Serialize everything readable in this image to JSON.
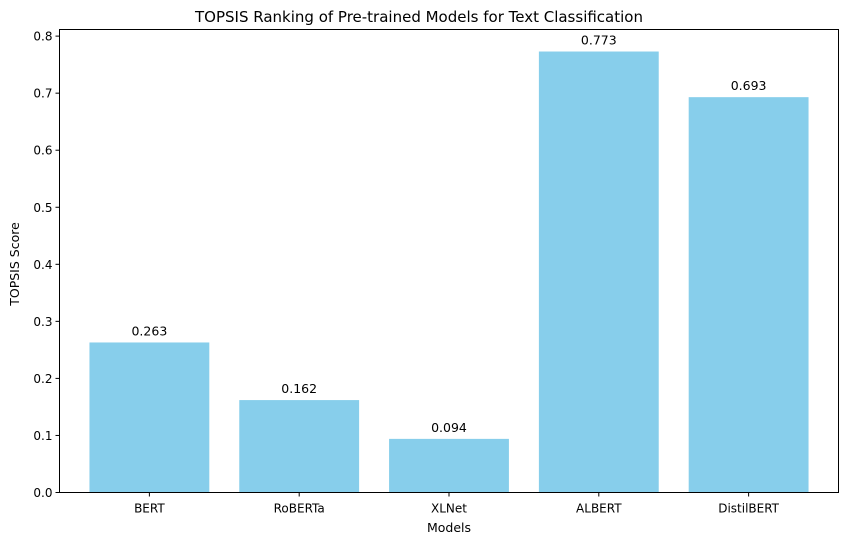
{
  "chart_data": {
    "type": "bar",
    "title": "TOPSIS Ranking of Pre-trained Models for Text Classification",
    "xlabel": "Models",
    "ylabel": "TOPSIS Score",
    "categories": [
      "BERT",
      "RoBERTa",
      "XLNet",
      "ALBERT",
      "DistilBERT"
    ],
    "values": [
      0.263,
      0.162,
      0.094,
      0.773,
      0.693
    ],
    "value_labels": [
      "0.263",
      "0.162",
      "0.094",
      "0.773",
      "0.693"
    ],
    "ylim": [
      0,
      0.8116
    ],
    "yticks": [
      0.0,
      0.1,
      0.2,
      0.3,
      0.4,
      0.5,
      0.6,
      0.7,
      0.8
    ],
    "ytick_labels": [
      "0.0",
      "0.1",
      "0.2",
      "0.3",
      "0.4",
      "0.5",
      "0.6",
      "0.7",
      "0.8"
    ],
    "bar_color": "#87ceeb",
    "grid": false,
    "legend": false
  }
}
